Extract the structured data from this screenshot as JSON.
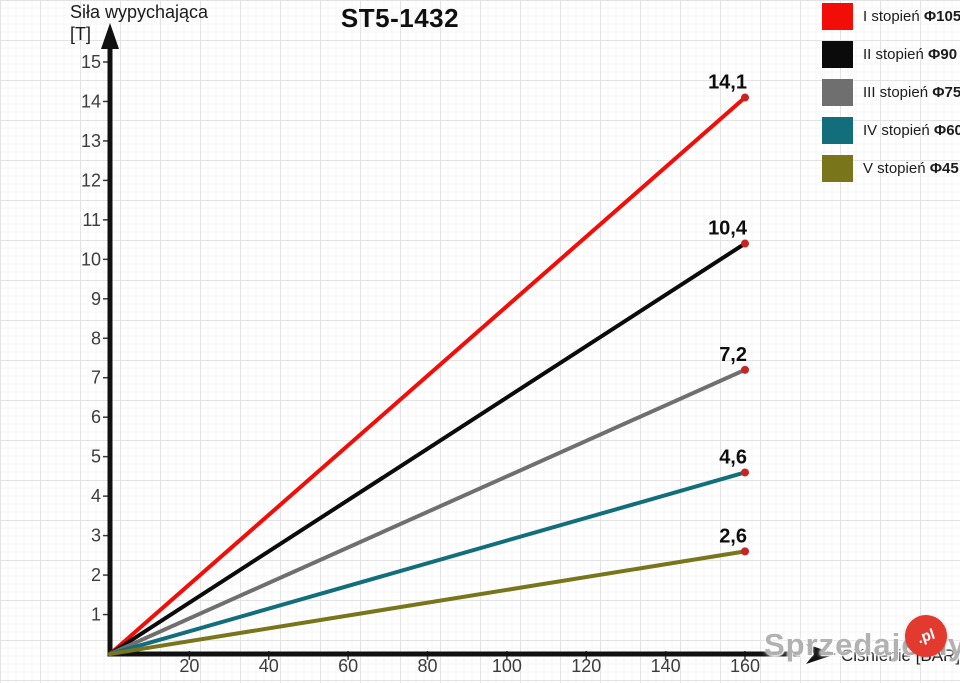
{
  "title": "ST5-1432",
  "y_axis": {
    "label_line1": "Siła wypychająca",
    "label_line2": "[T]"
  },
  "x_axis": {
    "label": "Ciśnienie [BAR]"
  },
  "legend": {
    "items": [
      {
        "label": "I stopień",
        "bold": "Φ105",
        "color": "#f30d08"
      },
      {
        "label": "II stopień",
        "bold": "Φ90",
        "color": "#0b0b0b"
      },
      {
        "label": "III stopień",
        "bold": "Φ75",
        "color": "#6f6f6f"
      },
      {
        "label": "IV stopień",
        "bold": "Φ60",
        "color": "#136e7c"
      },
      {
        "label": "V stopień",
        "bold": "Φ45",
        "color": "#78751b"
      }
    ]
  },
  "watermark": {
    "text": "Sprzedajemy",
    "badge": ".pl",
    "badge_color": "#e23a2e"
  },
  "chart_data": {
    "type": "line",
    "title": "ST5-1432",
    "xlabel": "Ciśnienie [BAR]",
    "ylabel": "Siła wypychająca [T]",
    "xlim": [
      0,
      172
    ],
    "ylim": [
      0,
      15.8
    ],
    "x_ticks": [
      20,
      40,
      60,
      80,
      100,
      120,
      140,
      160
    ],
    "y_ticks": [
      1,
      2,
      3,
      4,
      5,
      6,
      7,
      8,
      9,
      10,
      11,
      12,
      13,
      14,
      15
    ],
    "grid": true,
    "legend_position": "top-right",
    "point_color": "#cb2323",
    "series": [
      {
        "name": "I stopień Φ105",
        "color": "#f30d08",
        "x": [
          0,
          160
        ],
        "y": [
          0,
          14.1
        ],
        "end_label": "14,1"
      },
      {
        "name": "II stopień Φ90",
        "color": "#0b0b0b",
        "x": [
          0,
          160
        ],
        "y": [
          0,
          10.4
        ],
        "end_label": "10,4"
      },
      {
        "name": "III stopień Φ75",
        "color": "#6f6f6f",
        "x": [
          0,
          160
        ],
        "y": [
          0,
          7.2
        ],
        "end_label": "7,2"
      },
      {
        "name": "IV stopień Φ60",
        "color": "#136e7c",
        "x": [
          0,
          160
        ],
        "y": [
          0,
          4.6
        ],
        "end_label": "4,6"
      },
      {
        "name": "V stopień Φ45",
        "color": "#78751b",
        "x": [
          0,
          160
        ],
        "y": [
          0,
          2.6
        ],
        "end_label": "2,6"
      }
    ]
  }
}
